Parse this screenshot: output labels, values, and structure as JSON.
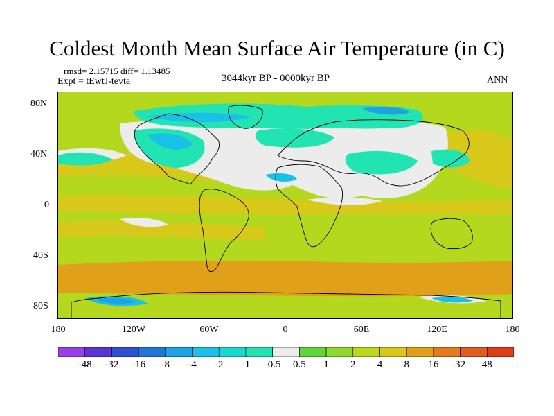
{
  "title": "Coldest Month Mean Surface Air Temperature (in C)",
  "stats": "rmsd= 2.15715  diff= 1.13485",
  "expt": "Expt = tEwtJ-tevta",
  "period": "3044kyr BP - 0000kyr BP",
  "season": "ANN",
  "axes": {
    "lat_labels": [
      "80N",
      "40N",
      "0",
      "40S",
      "80S"
    ],
    "lon_labels": [
      "180",
      "120W",
      "60W",
      "0",
      "60E",
      "120E",
      "180"
    ]
  },
  "colorbar": {
    "labels": [
      "-48",
      "-32",
      "-16",
      "-8",
      "-4",
      "-2",
      "-1",
      "-0.5",
      "0.5",
      "1",
      "2",
      "4",
      "8",
      "16",
      "32",
      "48"
    ],
    "colors": [
      "#9a3fe8",
      "#5a36d6",
      "#2f4fd2",
      "#1f78d8",
      "#1ea2e2",
      "#19c0e8",
      "#18d8d2",
      "#22e4b2",
      "#ececec",
      "#5ed53c",
      "#8fd82c",
      "#bcd81e",
      "#d8c81a",
      "#e0a01a",
      "#e47a1c",
      "#e45a1a",
      "#e03a18"
    ]
  },
  "colors": {
    "ocean_base": "#b4d81e",
    "tropical_band": "#d8c81a",
    "neutral": "#ececec",
    "cool_light": "#22e4b2",
    "cool_mid": "#19c0e8",
    "cool_strong": "#1ea2e2",
    "southern_warm": "#e0a01a",
    "coastline": "#000000"
  }
}
